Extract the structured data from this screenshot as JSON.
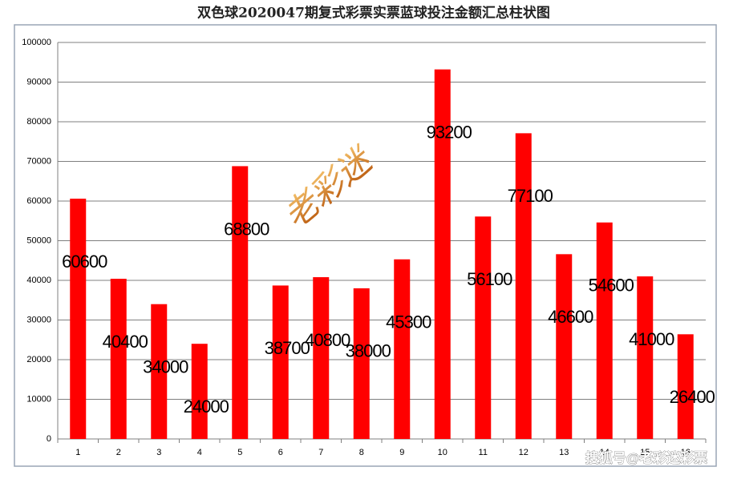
{
  "chart_data": {
    "type": "bar",
    "title": "双色球2020047期复式彩票实票蓝球投注金额汇总柱状图",
    "categories": [
      "1",
      "2",
      "3",
      "4",
      "5",
      "6",
      "7",
      "8",
      "9",
      "10",
      "11",
      "12",
      "13",
      "14",
      "15",
      "16"
    ],
    "values": [
      60600,
      40400,
      34000,
      24000,
      68800,
      38700,
      40800,
      38000,
      45300,
      93200,
      56100,
      77100,
      46600,
      54600,
      41000,
      26400
    ],
    "color": "#ff0000",
    "ylim": [
      0,
      100000
    ],
    "yticks": [
      0,
      10000,
      20000,
      30000,
      40000,
      50000,
      60000,
      70000,
      80000,
      90000,
      100000
    ],
    "grid": true,
    "watermarks": [
      "老彩迷",
      "搜狐号@老彩迷彩票"
    ]
  }
}
